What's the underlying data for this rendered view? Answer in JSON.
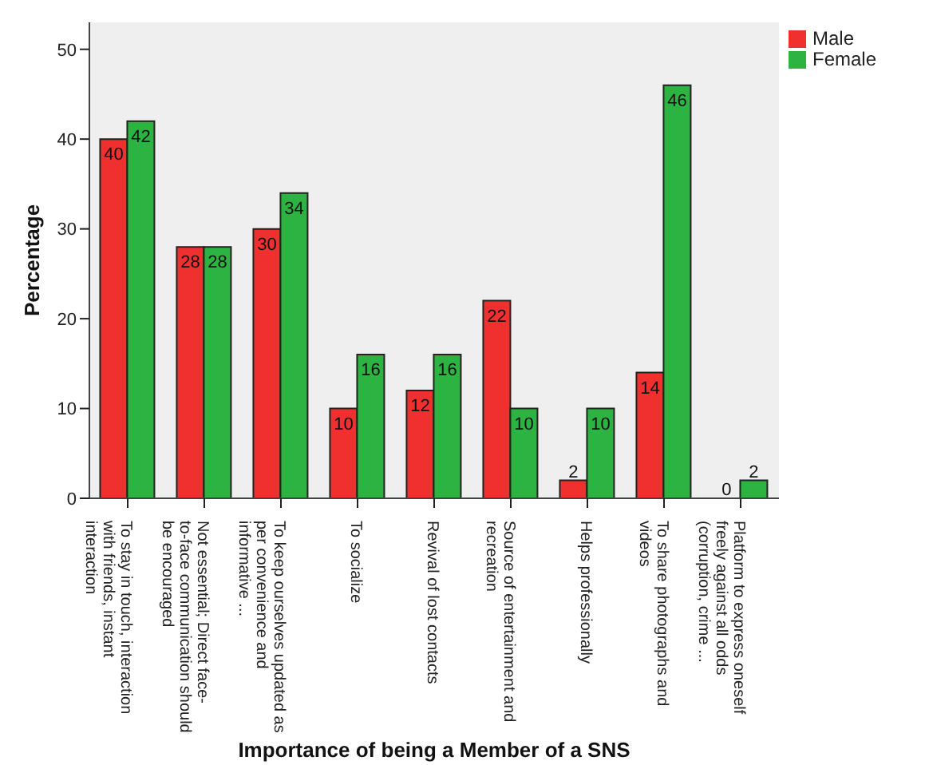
{
  "chart_data": {
    "type": "bar",
    "xlabel": "Importance of being a Member of a SNS",
    "ylabel": "Percentage",
    "categories": [
      "To stay in touch, interaction with friends, instant interaction",
      "Not essential; Direct face-to-face communication should be encouraged",
      "To keep ourselves updated as per convenience and informative ...",
      "To socialize",
      "Revival of lost contacts",
      "Source of entertainment and recreation",
      "Helps professionally",
      "To share photographs and videos",
      "Platform to express oneself freely against all odds (corruption, crime ..."
    ],
    "series": [
      {
        "name": "Male",
        "color": "#f0302f",
        "values": [
          40,
          28,
          30,
          10,
          12,
          22,
          2,
          14,
          0
        ]
      },
      {
        "name": "Female",
        "color": "#2db341",
        "values": [
          42,
          28,
          34,
          16,
          16,
          10,
          10,
          46,
          2
        ]
      }
    ],
    "ylim": [
      0,
      53
    ],
    "yticks": [
      0,
      10,
      20,
      30,
      40,
      50
    ],
    "grid": false,
    "legend": "top right",
    "data_labels": true
  }
}
